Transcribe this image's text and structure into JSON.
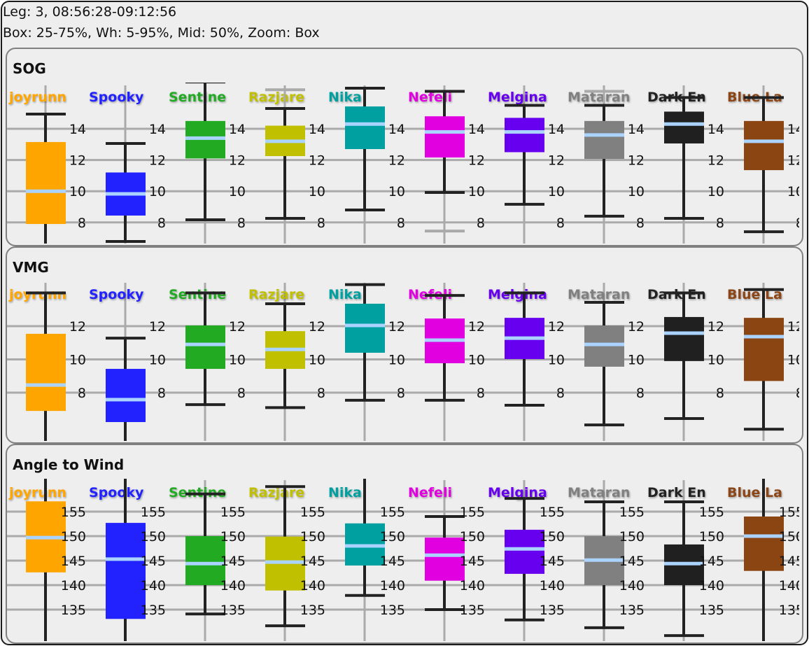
{
  "header": {
    "line1": "Leg: 3, 08:56:28-09:12:56",
    "line2": "Box: 25-75%, Wh: 5-95%, Mid: 50%, Zoom: Box"
  },
  "colors": {
    "median": "#aad4ff",
    "whisker": "#222222",
    "outer_whisker": "#aaaaaa",
    "grid": "#aaaaaa"
  },
  "boats": [
    {
      "name": "joyrunn",
      "color": "#ffa500"
    },
    {
      "name": "Spooky",
      "color": "#2222ff"
    },
    {
      "name": "Sentine",
      "color": "#22aa22"
    },
    {
      "name": "Razjare",
      "color": "#c0c000"
    },
    {
      "name": "Nika",
      "color": "#00a0a0"
    },
    {
      "name": "Nefeli",
      "color": "#e000e0"
    },
    {
      "name": "Melgina",
      "color": "#6600ee"
    },
    {
      "name": "Mataran",
      "color": "#808080"
    },
    {
      "name": "Dark En",
      "color": "#202020"
    },
    {
      "name": "Blue La",
      "color": "#8b4513"
    }
  ],
  "chart_data": [
    {
      "type": "box",
      "title": "SOG",
      "yticks": [
        14,
        12,
        10,
        8
      ],
      "grid": true,
      "series": [
        {
          "boat": "joyrunn",
          "whisker_low": 6.5,
          "q1": 7.9,
          "median": 10.0,
          "q3": 13.15,
          "whisker_high": 14.94
        },
        {
          "boat": "Spooky",
          "whisker_low": 6.78,
          "q1": 8.44,
          "median": 9.83,
          "q3": 11.2,
          "whisker_high": 13.06
        },
        {
          "boat": "Sentine",
          "whisker_low": 8.17,
          "q1": 12.1,
          "median": 13.4,
          "q3": 14.5,
          "whisker_high": 17.0
        },
        {
          "boat": "Razjare",
          "whisker_low": 8.26,
          "q1": 12.25,
          "median": 13.2,
          "q3": 14.2,
          "whisker_high": 15.3,
          "outer_high": 16.5
        },
        {
          "boat": "Nika",
          "whisker_low": 8.8,
          "q1": 12.7,
          "median": 14.3,
          "q3": 15.43,
          "whisker_high": 16.6
        },
        {
          "boat": "Nefeli",
          "whisker_low": 9.92,
          "q1": 12.16,
          "median": 13.8,
          "q3": 14.8,
          "whisker_high": 16.4,
          "outer_low": 7.45
        },
        {
          "boat": "Melgina",
          "whisker_low": 9.16,
          "q1": 12.5,
          "median": 13.8,
          "q3": 14.7,
          "whisker_high": 15.5
        },
        {
          "boat": "Mataran",
          "whisker_low": 8.4,
          "q1": 12.07,
          "median": 13.6,
          "q3": 14.5,
          "whisker_high": 15.5,
          "outer_high": 16.4
        },
        {
          "boat": "Dark En",
          "whisker_low": 8.26,
          "q1": 13.06,
          "median": 14.3,
          "q3": 15.1,
          "whisker_high": 16.0
        },
        {
          "boat": "Blue La",
          "whisker_low": 7.4,
          "q1": 11.35,
          "median": 13.2,
          "q3": 14.5,
          "whisker_high": 16.0
        }
      ]
    },
    {
      "type": "box",
      "title": "VMG",
      "yticks": [
        12,
        10,
        8
      ],
      "grid": true,
      "series": [
        {
          "boat": "joyrunn",
          "whisker_low": 4.5,
          "q1": 6.9,
          "median": 8.46,
          "q3": 11.54,
          "whisker_high": 14.0
        },
        {
          "boat": "Spooky",
          "whisker_low": 4.5,
          "q1": 6.23,
          "median": 7.58,
          "q3": 9.43,
          "whisker_high": 11.28
        },
        {
          "boat": "Sentine",
          "whisker_low": 7.28,
          "q1": 9.43,
          "median": 10.9,
          "q3": 12.04,
          "whisker_high": 14.0
        },
        {
          "boat": "Razjare",
          "whisker_low": 7.1,
          "q1": 9.43,
          "median": 10.6,
          "q3": 11.7,
          "whisker_high": 13.35
        },
        {
          "boat": "Nika",
          "whisker_low": 7.54,
          "q1": 10.4,
          "median": 12.04,
          "q3": 13.35,
          "whisker_high": 14.5
        },
        {
          "boat": "Nefeli",
          "whisker_low": 7.54,
          "q1": 9.77,
          "median": 11.16,
          "q3": 12.46,
          "whisker_high": 13.85
        },
        {
          "boat": "Melgina",
          "whisker_low": 7.24,
          "q1": 10.02,
          "median": 11.28,
          "q3": 12.5,
          "whisker_high": 14.0
        },
        {
          "boat": "Mataran",
          "whisker_low": 6.06,
          "q1": 9.56,
          "median": 10.9,
          "q3": 12.04,
          "whisker_high": 13.43
        },
        {
          "boat": "Dark En",
          "whisker_low": 6.44,
          "q1": 9.9,
          "median": 11.58,
          "q3": 12.55,
          "whisker_high": 14.0
        },
        {
          "boat": "Blue La",
          "whisker_low": 5.8,
          "q1": 8.7,
          "median": 11.37,
          "q3": 12.5,
          "whisker_high": 14.2
        }
      ]
    },
    {
      "type": "box",
      "title": "Angle to Wind",
      "yticks": [
        155,
        150,
        145,
        140,
        135
      ],
      "grid": true,
      "series": [
        {
          "boat": "joyrunn",
          "whisker_low": 125,
          "q1": 142.6,
          "median": 149.7,
          "q3": 157.1,
          "whisker_high": 165
        },
        {
          "boat": "Spooky",
          "whisker_low": 125,
          "q1": 133.1,
          "median": 145.3,
          "q3": 152.7,
          "whisker_high": 165
        },
        {
          "boat": "Sentine",
          "whisker_low": 134.1,
          "q1": 140.0,
          "median": 144.4,
          "q3": 150.0,
          "whisker_high": 158.6
        },
        {
          "boat": "Razjare",
          "whisker_low": 131.7,
          "q1": 138.9,
          "median": 144.7,
          "q3": 149.9,
          "whisker_high": 160.1
        },
        {
          "boat": "Nika",
          "whisker_low": 137.9,
          "q1": 144.0,
          "median": 148.0,
          "q3": 152.6,
          "whisker_high": 163
        },
        {
          "boat": "Nefeli",
          "whisker_low": 135.0,
          "q1": 140.9,
          "median": 146.1,
          "q3": 149.7,
          "whisker_high": 154.0
        },
        {
          "boat": "Melgina",
          "whisker_low": 132.9,
          "q1": 142.3,
          "median": 147.4,
          "q3": 151.3,
          "whisker_high": 157.7
        },
        {
          "boat": "Mataran",
          "whisker_low": 131.3,
          "q1": 140.0,
          "median": 145.1,
          "q3": 150.0,
          "whisker_high": 157.0
        },
        {
          "boat": "Dark En",
          "whisker_low": 129.7,
          "q1": 140.0,
          "median": 144.4,
          "q3": 148.3,
          "whisker_high": 157.0
        },
        {
          "boat": "Blue La",
          "whisker_low": 125,
          "q1": 142.9,
          "median": 150.0,
          "q3": 154.0,
          "whisker_high": 162
        }
      ]
    }
  ]
}
